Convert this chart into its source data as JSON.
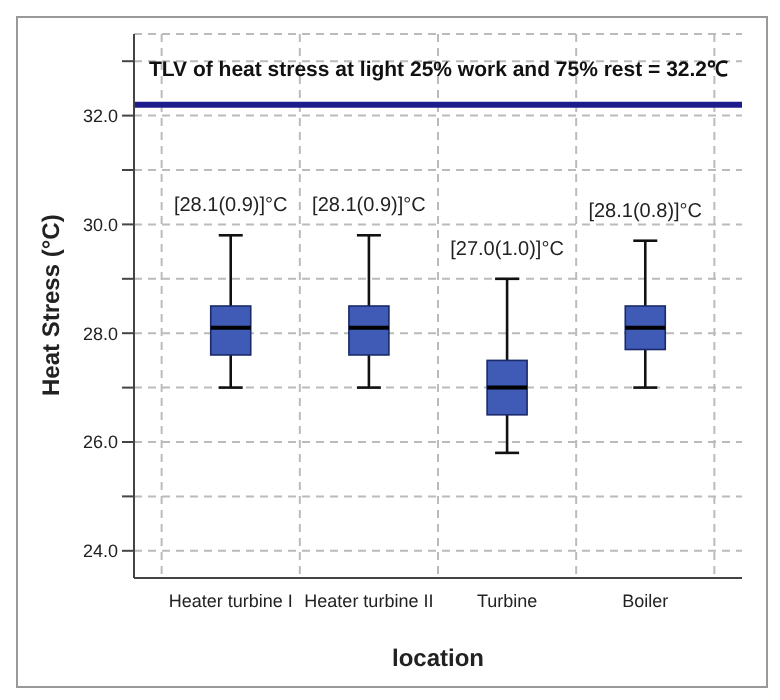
{
  "chart_data": {
    "type": "box",
    "xlabel": "location",
    "ylabel": "Heat Stress (°C)",
    "categories": [
      "Heater turbine I",
      "Heater turbine II",
      "Turbine",
      "Boiler"
    ],
    "color": "#3f5bb5",
    "boxes": [
      {
        "low": 27.0,
        "q1": 27.6,
        "median": 28.1,
        "q3": 28.5,
        "high": 29.8
      },
      {
        "low": 27.0,
        "q1": 27.6,
        "median": 28.1,
        "q3": 28.5,
        "high": 29.8
      },
      {
        "low": 25.8,
        "q1": 26.5,
        "median": 27.0,
        "q3": 27.5,
        "high": 29.0
      },
      {
        "low": 27.0,
        "q1": 27.7,
        "median": 28.1,
        "q3": 28.5,
        "high": 29.7
      }
    ],
    "ylim": [
      23.5,
      33.5
    ],
    "yticks": [
      {
        "value": 24,
        "label": "24.0"
      },
      {
        "value": 25,
        "label": null
      },
      {
        "value": 26,
        "label": "26.0"
      },
      {
        "value": 27,
        "label": null
      },
      {
        "value": 28,
        "label": "28.0"
      },
      {
        "value": 29,
        "label": null
      },
      {
        "value": 30,
        "label": "30.0"
      },
      {
        "value": 31,
        "label": null
      },
      {
        "value": 32,
        "label": "32.0"
      },
      {
        "value": 33,
        "label": null
      }
    ],
    "grid": true,
    "ref_lines": [
      {
        "axis": "y",
        "value": 32.2,
        "label": "TLV of heat stress at light 25% work and 75% rest = 32.2℃",
        "color": "#1c1c8c"
      }
    ],
    "annotations": [
      "[28.1(0.9)]°C",
      "[28.1(0.9)]°C",
      "[27.0(1.0)]°C",
      "[28.1(0.8)]°C"
    ]
  }
}
